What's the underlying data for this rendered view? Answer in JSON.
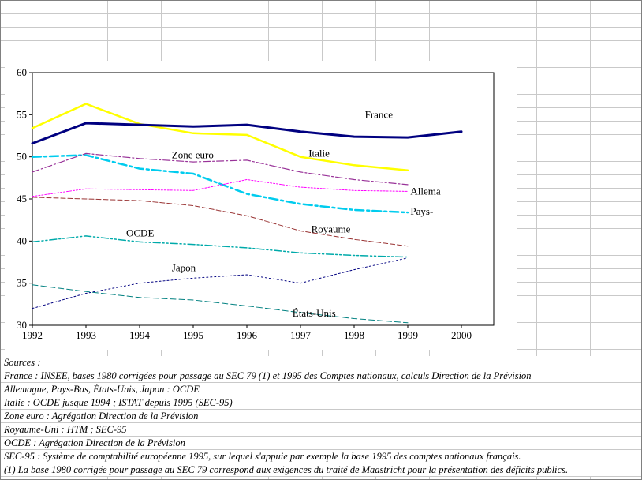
{
  "chart_data": {
    "type": "line",
    "title": "",
    "xlabel": "",
    "ylabel": "",
    "x": [
      1992,
      1993,
      1994,
      1995,
      1996,
      1997,
      1998,
      1999,
      2000
    ],
    "x_tick_labels": [
      "1992",
      "1993",
      "1994",
      "1995",
      "1996",
      "1997",
      "1998",
      "1999",
      "2000"
    ],
    "ylim": [
      30,
      60
    ],
    "yticks": [
      30,
      35,
      40,
      45,
      50,
      55,
      60
    ],
    "grid": false,
    "legend_position": "none-inline-labels",
    "series": [
      {
        "name": "France",
        "color": "#000080",
        "width": 3,
        "dash": "",
        "values": [
          51.6,
          54.0,
          53.8,
          53.6,
          53.8,
          53.0,
          52.4,
          52.3,
          53.0
        ]
      },
      {
        "name": "Italie",
        "color": "#ffff00",
        "width": 2.5,
        "dash": "",
        "values": [
          53.4,
          56.3,
          53.9,
          52.8,
          52.6,
          50.0,
          49.0,
          48.4,
          null
        ]
      },
      {
        "name": "Zone euro",
        "color": "#993399",
        "width": 1.2,
        "dash": "9 3 2 3",
        "values": [
          48.2,
          50.4,
          49.8,
          49.4,
          49.6,
          48.2,
          47.3,
          46.7,
          null
        ]
      },
      {
        "name": "Allemagne",
        "color": "#ff00ff",
        "width": 1,
        "dash": "2 2",
        "values": [
          45.3,
          46.2,
          46.1,
          46.0,
          47.3,
          46.4,
          46.0,
          45.9,
          null
        ]
      },
      {
        "name": "Pays-Bas",
        "color": "#00ccee",
        "width": 2.5,
        "dash": "11 4 3 4",
        "values": [
          50.0,
          50.2,
          48.6,
          48.0,
          45.6,
          44.4,
          43.7,
          43.4,
          null
        ]
      },
      {
        "name": "Royaume-Uni",
        "color": "#993333",
        "width": 1,
        "dash": "6 3",
        "values": [
          45.2,
          45.0,
          44.8,
          44.2,
          43.0,
          41.2,
          40.2,
          39.4,
          null
        ]
      },
      {
        "name": "OCDE",
        "color": "#00aaaa",
        "width": 1.5,
        "dash": "9 3 2 3 2 3",
        "values": [
          39.9,
          40.6,
          39.9,
          39.6,
          39.2,
          38.6,
          38.3,
          38.1,
          null
        ]
      },
      {
        "name": "Japon",
        "color": "#000080",
        "width": 1,
        "dash": "2 3",
        "values": [
          32.0,
          33.8,
          35.0,
          35.6,
          36.0,
          35.0,
          36.6,
          38.0,
          null
        ]
      },
      {
        "name": "États-Unis",
        "color": "#008080",
        "width": 1,
        "dash": "7 4",
        "values": [
          34.8,
          34.0,
          33.3,
          33.0,
          32.3,
          31.5,
          30.8,
          30.3,
          null
        ]
      }
    ],
    "annotations": [
      {
        "text": "France",
        "x": 1998.2,
        "y": 55.0
      },
      {
        "text": "Italie",
        "x": 1997.15,
        "y": 50.4
      },
      {
        "text": "Zone euro",
        "x": 1994.6,
        "y": 50.2
      },
      {
        "text": "Allema",
        "x": 1999.05,
        "y": 45.9
      },
      {
        "text": "Pays-",
        "x": 1999.05,
        "y": 43.5
      },
      {
        "text": "Royaume",
        "x": 1997.2,
        "y": 41.4
      },
      {
        "text": "OCDE",
        "x": 1993.75,
        "y": 40.9
      },
      {
        "text": "Japon",
        "x": 1994.6,
        "y": 36.8
      },
      {
        "text": "États-Unis",
        "x": 1996.85,
        "y": 31.4
      }
    ]
  },
  "notes": {
    "rows": [
      "Sources :",
      "France : INSEE, bases 1980 corrigées pour passage au SEC 79 (1) et 1995 des Comptes nationaux, calculs Direction de la Prévision",
      "Allemagne, Pays-Bas, États-Unis, Japon  : OCDE",
      "Italie : OCDE jusque 1994 ; ISTAT depuis 1995 (SEC-95)",
      "Zone euro : Agrégation Direction de la Prévision",
      "Royaume-Uni : HTM ;  SEC-95",
      "OCDE :  Agrégation Direction de la Prévision",
      "SEC-95 : Système de comptabilité européenne 1995, sur lequel s'appuie par exemple la base 1995 des comptes nationaux français.",
      "(1) La base 1980 corrigée pour passage au SEC 79 correspond aux exigences du traité de Maastricht pour la présentation des déficits publics."
    ]
  }
}
